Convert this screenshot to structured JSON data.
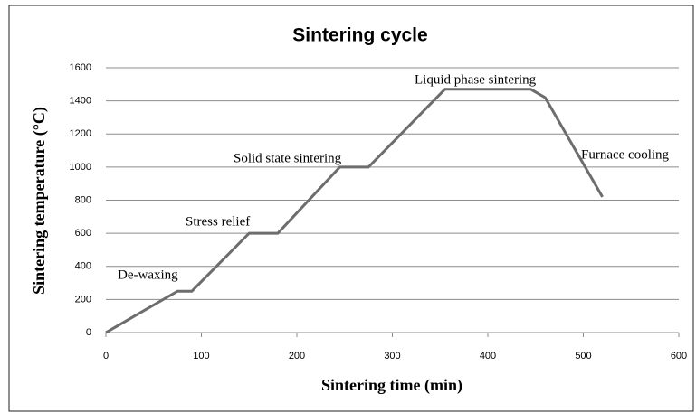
{
  "chart_data": {
    "type": "line",
    "title": "Sintering cycle",
    "x_label": "Sintering time (min)",
    "y_label": "Sintering temperature (°C)",
    "x": [
      0,
      75,
      90,
      150,
      180,
      245,
      275,
      355,
      445,
      460,
      520
    ],
    "series": [
      {
        "name": "Sintering cycle",
        "color": "#6d6d6d",
        "values": [
          0,
          250,
          250,
          600,
          600,
          1000,
          1000,
          1470,
          1470,
          1420,
          820
        ]
      }
    ],
    "xlim": [
      0,
      600
    ],
    "xticks": [
      0,
      100,
      200,
      300,
      400,
      500,
      600
    ],
    "ylim": [
      0,
      1600
    ],
    "yticks": [
      0,
      200,
      400,
      600,
      800,
      1000,
      1200,
      1400,
      1600
    ],
    "grid": true,
    "annotations": [
      "De-waxing",
      "Stress relief",
      "Solid state sintering",
      "Liquid phase sintering",
      "Furnace cooling"
    ]
  }
}
